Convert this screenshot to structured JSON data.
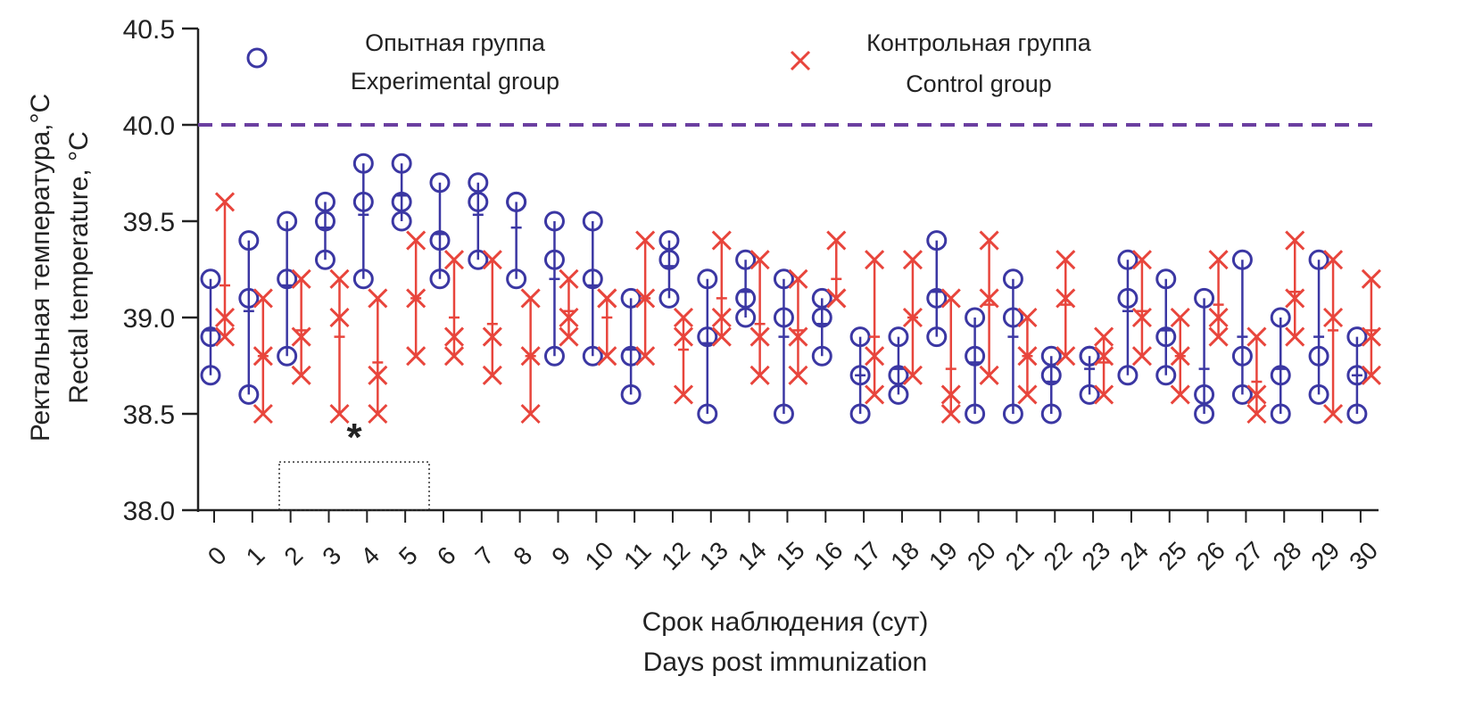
{
  "chart_data": {
    "type": "scatter",
    "ylabel_ru": "Ректальная температура,°C",
    "ylabel_en": "Rectal temperature, °C",
    "xlabel_ru": "Срок наблюдения (сут)",
    "xlabel_en": "Days post immunization",
    "ylim": [
      38.0,
      40.5
    ],
    "yticks": [
      "38.0",
      "38.5",
      "39.0",
      "39.5",
      "40.0",
      "40.5"
    ],
    "x": [
      0,
      1,
      2,
      3,
      4,
      5,
      6,
      7,
      8,
      9,
      10,
      11,
      12,
      13,
      14,
      15,
      16,
      17,
      18,
      19,
      20,
      21,
      22,
      23,
      24,
      25,
      26,
      27,
      28,
      29,
      30
    ],
    "threshold": 40.0,
    "threshold_color": "#6b3fa0",
    "annotation": "*",
    "annotation_day": 3.5,
    "legend_placement": "top",
    "series": [
      {
        "name_ru": "Опытная группа",
        "name_en": "Experimental group",
        "marker": "circle",
        "color": "#3b37a3",
        "values": [
          [
            39.2,
            38.9,
            38.7
          ],
          [
            39.4,
            39.1,
            38.6
          ],
          [
            39.5,
            39.2,
            38.8
          ],
          [
            39.5,
            39.6,
            39.3
          ],
          [
            39.8,
            39.6,
            39.2
          ],
          [
            39.8,
            39.6,
            39.5
          ],
          [
            39.7,
            39.4,
            39.2
          ],
          [
            39.6,
            39.7,
            39.3
          ],
          [
            39.6,
            39.6,
            39.2
          ],
          [
            39.5,
            39.3,
            38.8
          ],
          [
            39.5,
            39.2,
            38.8
          ],
          [
            39.1,
            38.8,
            38.6
          ],
          [
            39.3,
            39.4,
            39.1
          ],
          [
            39.2,
            38.9,
            38.5
          ],
          [
            39.3,
            39.1,
            39.0
          ],
          [
            39.2,
            39.0,
            38.5
          ],
          [
            39.0,
            39.1,
            38.8
          ],
          [
            38.9,
            38.7,
            38.5
          ],
          [
            38.9,
            38.7,
            38.6
          ],
          [
            39.4,
            39.1,
            38.9
          ],
          [
            39.0,
            38.8,
            38.5
          ],
          [
            39.2,
            39.0,
            38.5
          ],
          [
            38.8,
            38.7,
            38.5
          ],
          [
            38.8,
            38.8,
            38.6
          ],
          [
            39.3,
            39.1,
            38.7
          ],
          [
            39.2,
            38.9,
            38.7
          ],
          [
            39.1,
            38.6,
            38.5
          ],
          [
            39.3,
            38.8,
            38.6
          ],
          [
            39.0,
            38.7,
            38.5
          ],
          [
            39.3,
            38.8,
            38.6
          ],
          [
            38.9,
            38.7,
            38.5
          ]
        ]
      },
      {
        "name_ru": "Контрольная группа",
        "name_en": "Control group",
        "marker": "x",
        "color": "#e8453c",
        "values": [
          [
            39.6,
            39.0,
            38.9
          ],
          [
            39.1,
            38.8,
            38.5
          ],
          [
            39.2,
            38.9,
            38.7
          ],
          [
            39.2,
            39.0,
            38.5
          ],
          [
            39.1,
            38.7,
            38.5
          ],
          [
            39.4,
            39.1,
            38.8
          ],
          [
            39.3,
            38.9,
            38.8
          ],
          [
            39.3,
            38.9,
            38.7
          ],
          [
            39.1,
            38.8,
            38.5
          ],
          [
            39.2,
            39.0,
            38.9
          ],
          [
            39.1,
            39.1,
            38.8
          ],
          [
            39.4,
            39.1,
            38.8
          ],
          [
            39.0,
            38.9,
            38.6
          ],
          [
            39.4,
            39.0,
            38.9
          ],
          [
            39.3,
            38.9,
            38.7
          ],
          [
            39.2,
            38.9,
            38.7
          ],
          [
            39.4,
            39.1,
            39.1
          ],
          [
            39.3,
            38.8,
            38.6
          ],
          [
            39.3,
            39.0,
            38.7
          ],
          [
            39.1,
            38.6,
            38.5
          ],
          [
            39.4,
            39.1,
            38.7
          ],
          [
            39.0,
            38.8,
            38.6
          ],
          [
            39.3,
            39.1,
            38.8
          ],
          [
            38.9,
            38.8,
            38.6
          ],
          [
            39.3,
            39.0,
            38.8
          ],
          [
            39.0,
            38.8,
            38.6
          ],
          [
            39.3,
            39.0,
            38.9
          ],
          [
            38.9,
            38.6,
            38.5
          ],
          [
            39.4,
            39.1,
            38.9
          ],
          [
            39.3,
            39.0,
            38.5
          ],
          [
            39.2,
            38.9,
            38.7
          ]
        ]
      }
    ]
  }
}
